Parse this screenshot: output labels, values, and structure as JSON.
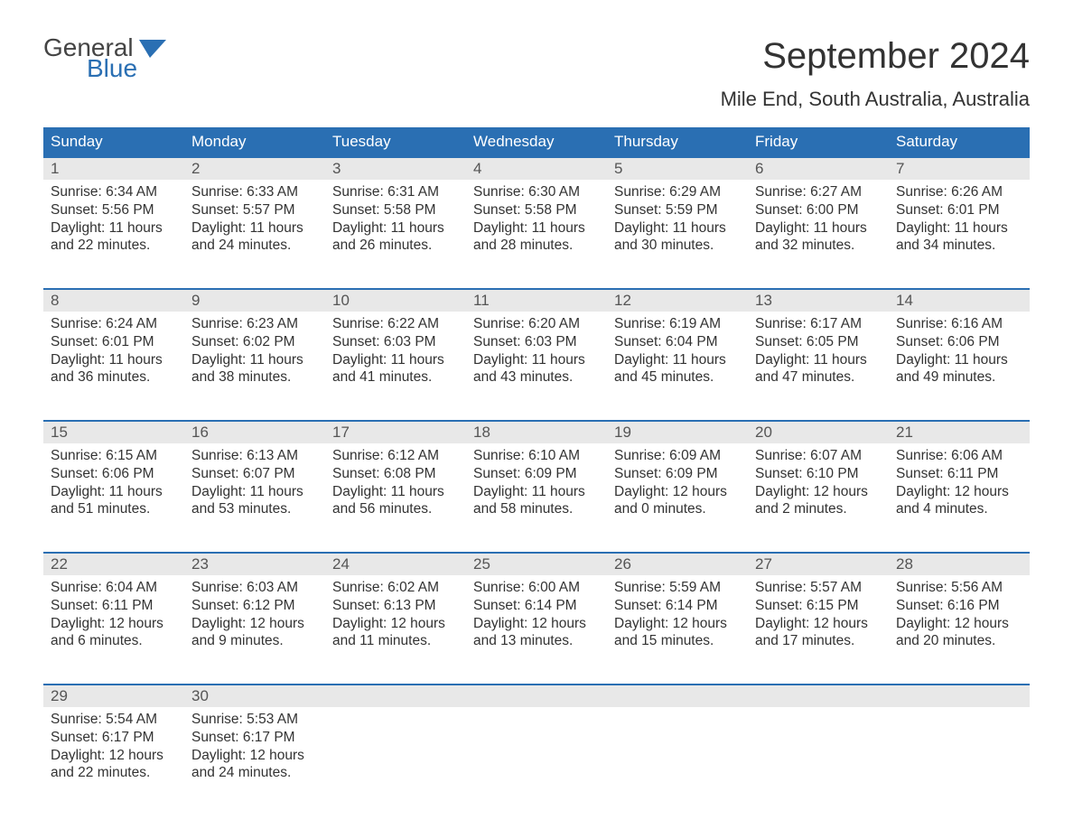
{
  "logo": {
    "general": "General",
    "blue": "Blue"
  },
  "title": "September 2024",
  "location": "Mile End, South Australia, Australia",
  "colors": {
    "header_bg": "#2a6fb3",
    "header_text": "#ffffff",
    "daynum_bg": "#e8e8e8",
    "week_divider": "#2a6fb3",
    "page_bg": "#ffffff",
    "text": "#333333",
    "logo_gray": "#444444",
    "logo_blue": "#2a6fb3"
  },
  "day_names": [
    "Sunday",
    "Monday",
    "Tuesday",
    "Wednesday",
    "Thursday",
    "Friday",
    "Saturday"
  ],
  "weeks": [
    [
      {
        "n": "1",
        "sunrise": "Sunrise: 6:34 AM",
        "sunset": "Sunset: 5:56 PM",
        "d1": "Daylight: 11 hours",
        "d2": "and 22 minutes."
      },
      {
        "n": "2",
        "sunrise": "Sunrise: 6:33 AM",
        "sunset": "Sunset: 5:57 PM",
        "d1": "Daylight: 11 hours",
        "d2": "and 24 minutes."
      },
      {
        "n": "3",
        "sunrise": "Sunrise: 6:31 AM",
        "sunset": "Sunset: 5:58 PM",
        "d1": "Daylight: 11 hours",
        "d2": "and 26 minutes."
      },
      {
        "n": "4",
        "sunrise": "Sunrise: 6:30 AM",
        "sunset": "Sunset: 5:58 PM",
        "d1": "Daylight: 11 hours",
        "d2": "and 28 minutes."
      },
      {
        "n": "5",
        "sunrise": "Sunrise: 6:29 AM",
        "sunset": "Sunset: 5:59 PM",
        "d1": "Daylight: 11 hours",
        "d2": "and 30 minutes."
      },
      {
        "n": "6",
        "sunrise": "Sunrise: 6:27 AM",
        "sunset": "Sunset: 6:00 PM",
        "d1": "Daylight: 11 hours",
        "d2": "and 32 minutes."
      },
      {
        "n": "7",
        "sunrise": "Sunrise: 6:26 AM",
        "sunset": "Sunset: 6:01 PM",
        "d1": "Daylight: 11 hours",
        "d2": "and 34 minutes."
      }
    ],
    [
      {
        "n": "8",
        "sunrise": "Sunrise: 6:24 AM",
        "sunset": "Sunset: 6:01 PM",
        "d1": "Daylight: 11 hours",
        "d2": "and 36 minutes."
      },
      {
        "n": "9",
        "sunrise": "Sunrise: 6:23 AM",
        "sunset": "Sunset: 6:02 PM",
        "d1": "Daylight: 11 hours",
        "d2": "and 38 minutes."
      },
      {
        "n": "10",
        "sunrise": "Sunrise: 6:22 AM",
        "sunset": "Sunset: 6:03 PM",
        "d1": "Daylight: 11 hours",
        "d2": "and 41 minutes."
      },
      {
        "n": "11",
        "sunrise": "Sunrise: 6:20 AM",
        "sunset": "Sunset: 6:03 PM",
        "d1": "Daylight: 11 hours",
        "d2": "and 43 minutes."
      },
      {
        "n": "12",
        "sunrise": "Sunrise: 6:19 AM",
        "sunset": "Sunset: 6:04 PM",
        "d1": "Daylight: 11 hours",
        "d2": "and 45 minutes."
      },
      {
        "n": "13",
        "sunrise": "Sunrise: 6:17 AM",
        "sunset": "Sunset: 6:05 PM",
        "d1": "Daylight: 11 hours",
        "d2": "and 47 minutes."
      },
      {
        "n": "14",
        "sunrise": "Sunrise: 6:16 AM",
        "sunset": "Sunset: 6:06 PM",
        "d1": "Daylight: 11 hours",
        "d2": "and 49 minutes."
      }
    ],
    [
      {
        "n": "15",
        "sunrise": "Sunrise: 6:15 AM",
        "sunset": "Sunset: 6:06 PM",
        "d1": "Daylight: 11 hours",
        "d2": "and 51 minutes."
      },
      {
        "n": "16",
        "sunrise": "Sunrise: 6:13 AM",
        "sunset": "Sunset: 6:07 PM",
        "d1": "Daylight: 11 hours",
        "d2": "and 53 minutes."
      },
      {
        "n": "17",
        "sunrise": "Sunrise: 6:12 AM",
        "sunset": "Sunset: 6:08 PM",
        "d1": "Daylight: 11 hours",
        "d2": "and 56 minutes."
      },
      {
        "n": "18",
        "sunrise": "Sunrise: 6:10 AM",
        "sunset": "Sunset: 6:09 PM",
        "d1": "Daylight: 11 hours",
        "d2": "and 58 minutes."
      },
      {
        "n": "19",
        "sunrise": "Sunrise: 6:09 AM",
        "sunset": "Sunset: 6:09 PM",
        "d1": "Daylight: 12 hours",
        "d2": "and 0 minutes."
      },
      {
        "n": "20",
        "sunrise": "Sunrise: 6:07 AM",
        "sunset": "Sunset: 6:10 PM",
        "d1": "Daylight: 12 hours",
        "d2": "and 2 minutes."
      },
      {
        "n": "21",
        "sunrise": "Sunrise: 6:06 AM",
        "sunset": "Sunset: 6:11 PM",
        "d1": "Daylight: 12 hours",
        "d2": "and 4 minutes."
      }
    ],
    [
      {
        "n": "22",
        "sunrise": "Sunrise: 6:04 AM",
        "sunset": "Sunset: 6:11 PM",
        "d1": "Daylight: 12 hours",
        "d2": "and 6 minutes."
      },
      {
        "n": "23",
        "sunrise": "Sunrise: 6:03 AM",
        "sunset": "Sunset: 6:12 PM",
        "d1": "Daylight: 12 hours",
        "d2": "and 9 minutes."
      },
      {
        "n": "24",
        "sunrise": "Sunrise: 6:02 AM",
        "sunset": "Sunset: 6:13 PM",
        "d1": "Daylight: 12 hours",
        "d2": "and 11 minutes."
      },
      {
        "n": "25",
        "sunrise": "Sunrise: 6:00 AM",
        "sunset": "Sunset: 6:14 PM",
        "d1": "Daylight: 12 hours",
        "d2": "and 13 minutes."
      },
      {
        "n": "26",
        "sunrise": "Sunrise: 5:59 AM",
        "sunset": "Sunset: 6:14 PM",
        "d1": "Daylight: 12 hours",
        "d2": "and 15 minutes."
      },
      {
        "n": "27",
        "sunrise": "Sunrise: 5:57 AM",
        "sunset": "Sunset: 6:15 PM",
        "d1": "Daylight: 12 hours",
        "d2": "and 17 minutes."
      },
      {
        "n": "28",
        "sunrise": "Sunrise: 5:56 AM",
        "sunset": "Sunset: 6:16 PM",
        "d1": "Daylight: 12 hours",
        "d2": "and 20 minutes."
      }
    ],
    [
      {
        "n": "29",
        "sunrise": "Sunrise: 5:54 AM",
        "sunset": "Sunset: 6:17 PM",
        "d1": "Daylight: 12 hours",
        "d2": "and 22 minutes."
      },
      {
        "n": "30",
        "sunrise": "Sunrise: 5:53 AM",
        "sunset": "Sunset: 6:17 PM",
        "d1": "Daylight: 12 hours",
        "d2": "and 24 minutes."
      },
      {
        "n": "",
        "sunrise": "",
        "sunset": "",
        "d1": "",
        "d2": ""
      },
      {
        "n": "",
        "sunrise": "",
        "sunset": "",
        "d1": "",
        "d2": ""
      },
      {
        "n": "",
        "sunrise": "",
        "sunset": "",
        "d1": "",
        "d2": ""
      },
      {
        "n": "",
        "sunrise": "",
        "sunset": "",
        "d1": "",
        "d2": ""
      },
      {
        "n": "",
        "sunrise": "",
        "sunset": "",
        "d1": "",
        "d2": ""
      }
    ]
  ]
}
